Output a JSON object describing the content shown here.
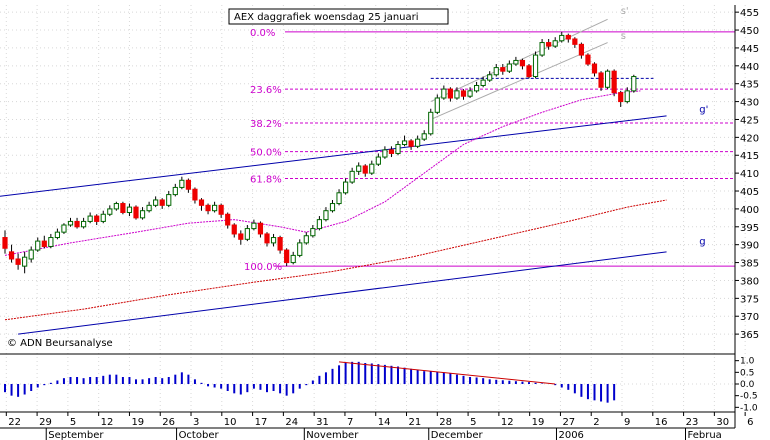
{
  "chart_data": {
    "type": "candlestick",
    "title": "AEX daggrafiek woensdag 25 januari",
    "copyright": "© ADN Beursanalyse",
    "price_axis": {
      "side": "right",
      "range": [
        360,
        457
      ],
      "ticks": [
        365,
        370,
        375,
        380,
        385,
        390,
        395,
        400,
        405,
        410,
        415,
        420,
        425,
        430,
        435,
        440,
        445,
        450,
        455
      ]
    },
    "indicator_axis": {
      "side": "right",
      "range": [
        -1.2,
        1.2
      ],
      "ticks": [
        "1.0",
        "0.5",
        "0.0",
        "-0.5",
        "-1.0"
      ]
    },
    "x_tick_labels": [
      "22",
      "29",
      "5",
      "12",
      "19",
      "26",
      "3",
      "10",
      "17",
      "24",
      "31",
      "7",
      "14",
      "21",
      "28",
      "5",
      "12",
      "19",
      "27",
      "2",
      "9",
      "16",
      "23",
      "30",
      "6"
    ],
    "month_labels": [
      "September",
      "October",
      "November",
      "December",
      "2006",
      "Februa"
    ],
    "fibonacci": [
      {
        "label": "0.0%",
        "value": 449.5
      },
      {
        "label": "23.6%",
        "value": 433.5
      },
      {
        "label": "38.2%",
        "value": 424.0
      },
      {
        "label": "50.0%",
        "value": 416.0
      },
      {
        "label": "61.8%",
        "value": 408.5
      },
      {
        "label": "100.0%",
        "value": 384.0
      }
    ],
    "trendline_labels": [
      "s'",
      "s",
      "g'",
      "g"
    ],
    "candles": [
      {
        "o": 392.0,
        "c": 389.0,
        "h": 394.0,
        "l": 387.5
      },
      {
        "o": 388.0,
        "c": 386.0,
        "h": 390.0,
        "l": 385.0
      },
      {
        "o": 386.0,
        "c": 384.5,
        "h": 387.5,
        "l": 383.0
      },
      {
        "o": 384.0,
        "c": 386.5,
        "h": 388.0,
        "l": 382.0
      },
      {
        "o": 386.0,
        "c": 388.5,
        "h": 389.5,
        "l": 385.0
      },
      {
        "o": 388.5,
        "c": 391.0,
        "h": 392.0,
        "l": 388.0
      },
      {
        "o": 391.0,
        "c": 389.5,
        "h": 392.5,
        "l": 389.0
      },
      {
        "o": 389.5,
        "c": 392.0,
        "h": 393.0,
        "l": 389.0
      },
      {
        "o": 392.0,
        "c": 393.5,
        "h": 394.5,
        "l": 391.5
      },
      {
        "o": 393.5,
        "c": 395.5,
        "h": 396.0,
        "l": 393.0
      },
      {
        "o": 395.5,
        "c": 396.5,
        "h": 397.5,
        "l": 395.0
      },
      {
        "o": 396.5,
        "c": 395.0,
        "h": 397.5,
        "l": 394.5
      },
      {
        "o": 395.0,
        "c": 396.5,
        "h": 397.5,
        "l": 394.5
      },
      {
        "o": 396.5,
        "c": 398.0,
        "h": 399.0,
        "l": 396.0
      },
      {
        "o": 398.0,
        "c": 396.5,
        "h": 398.5,
        "l": 395.5
      },
      {
        "o": 396.5,
        "c": 398.5,
        "h": 399.5,
        "l": 396.0
      },
      {
        "o": 398.5,
        "c": 400.0,
        "h": 401.0,
        "l": 398.0
      },
      {
        "o": 400.0,
        "c": 401.5,
        "h": 402.0,
        "l": 399.5
      },
      {
        "o": 401.5,
        "c": 399.0,
        "h": 402.0,
        "l": 398.5
      },
      {
        "o": 399.0,
        "c": 400.5,
        "h": 401.5,
        "l": 398.0
      },
      {
        "o": 400.5,
        "c": 397.5,
        "h": 401.0,
        "l": 397.0
      },
      {
        "o": 397.5,
        "c": 399.5,
        "h": 400.5,
        "l": 397.0
      },
      {
        "o": 399.5,
        "c": 401.0,
        "h": 402.0,
        "l": 399.0
      },
      {
        "o": 401.0,
        "c": 402.5,
        "h": 403.5,
        "l": 400.5
      },
      {
        "o": 402.5,
        "c": 401.0,
        "h": 403.0,
        "l": 400.0
      },
      {
        "o": 401.0,
        "c": 404.0,
        "h": 405.0,
        "l": 400.5
      },
      {
        "o": 404.0,
        "c": 406.0,
        "h": 407.0,
        "l": 403.5
      },
      {
        "o": 406.0,
        "c": 408.0,
        "h": 409.0,
        "l": 405.5
      },
      {
        "o": 408.0,
        "c": 405.5,
        "h": 408.5,
        "l": 404.5
      },
      {
        "o": 405.5,
        "c": 402.5,
        "h": 406.0,
        "l": 401.5
      },
      {
        "o": 402.5,
        "c": 401.0,
        "h": 403.0,
        "l": 399.5
      },
      {
        "o": 401.0,
        "c": 399.5,
        "h": 401.5,
        "l": 398.5
      },
      {
        "o": 399.5,
        "c": 401.0,
        "h": 402.0,
        "l": 399.0
      },
      {
        "o": 401.0,
        "c": 398.5,
        "h": 401.5,
        "l": 397.5
      },
      {
        "o": 398.5,
        "c": 395.5,
        "h": 399.0,
        "l": 394.5
      },
      {
        "o": 395.5,
        "c": 393.0,
        "h": 396.0,
        "l": 392.0
      },
      {
        "o": 393.0,
        "c": 391.5,
        "h": 394.0,
        "l": 390.0
      },
      {
        "o": 391.5,
        "c": 394.5,
        "h": 395.5,
        "l": 391.0
      },
      {
        "o": 394.5,
        "c": 396.0,
        "h": 397.0,
        "l": 394.0
      },
      {
        "o": 396.0,
        "c": 393.0,
        "h": 396.5,
        "l": 392.0
      },
      {
        "o": 393.0,
        "c": 390.5,
        "h": 393.5,
        "l": 389.5
      },
      {
        "o": 390.5,
        "c": 392.0,
        "h": 393.0,
        "l": 389.5
      },
      {
        "o": 392.0,
        "c": 388.5,
        "h": 392.5,
        "l": 387.5
      },
      {
        "o": 388.5,
        "c": 385.0,
        "h": 389.0,
        "l": 384.0
      },
      {
        "o": 385.0,
        "c": 387.0,
        "h": 388.0,
        "l": 384.5
      },
      {
        "o": 387.0,
        "c": 390.5,
        "h": 391.5,
        "l": 386.5
      },
      {
        "o": 390.5,
        "c": 392.5,
        "h": 393.5,
        "l": 390.0
      },
      {
        "o": 392.5,
        "c": 394.5,
        "h": 395.5,
        "l": 392.0
      },
      {
        "o": 394.5,
        "c": 397.0,
        "h": 398.0,
        "l": 394.0
      },
      {
        "o": 397.0,
        "c": 399.5,
        "h": 400.5,
        "l": 396.5
      },
      {
        "o": 399.5,
        "c": 401.5,
        "h": 402.5,
        "l": 399.0
      },
      {
        "o": 401.5,
        "c": 404.5,
        "h": 405.5,
        "l": 401.0
      },
      {
        "o": 404.5,
        "c": 407.5,
        "h": 408.5,
        "l": 404.0
      },
      {
        "o": 407.5,
        "c": 410.5,
        "h": 411.5,
        "l": 407.0
      },
      {
        "o": 410.5,
        "c": 412.0,
        "h": 413.0,
        "l": 409.5
      },
      {
        "o": 412.0,
        "c": 410.0,
        "h": 412.5,
        "l": 409.0
      },
      {
        "o": 410.0,
        "c": 412.5,
        "h": 413.5,
        "l": 409.5
      },
      {
        "o": 412.5,
        "c": 414.5,
        "h": 415.5,
        "l": 412.0
      },
      {
        "o": 414.5,
        "c": 416.5,
        "h": 417.5,
        "l": 414.0
      },
      {
        "o": 416.5,
        "c": 415.5,
        "h": 417.5,
        "l": 414.5
      },
      {
        "o": 415.5,
        "c": 418.0,
        "h": 419.0,
        "l": 415.0
      },
      {
        "o": 418.0,
        "c": 419.0,
        "h": 420.5,
        "l": 417.5
      },
      {
        "o": 419.0,
        "c": 417.5,
        "h": 419.5,
        "l": 416.5
      },
      {
        "o": 417.5,
        "c": 419.5,
        "h": 420.5,
        "l": 417.0
      },
      {
        "o": 419.5,
        "c": 421.0,
        "h": 422.0,
        "l": 419.0
      },
      {
        "o": 421.0,
        "c": 427.0,
        "h": 428.0,
        "l": 420.5
      },
      {
        "o": 427.0,
        "c": 431.0,
        "h": 432.0,
        "l": 426.5
      },
      {
        "o": 431.0,
        "c": 433.5,
        "h": 434.5,
        "l": 430.5
      },
      {
        "o": 433.5,
        "c": 431.0,
        "h": 434.0,
        "l": 430.0
      },
      {
        "o": 431.0,
        "c": 433.0,
        "h": 434.0,
        "l": 430.5
      },
      {
        "o": 433.0,
        "c": 431.5,
        "h": 433.5,
        "l": 430.5
      },
      {
        "o": 431.5,
        "c": 433.0,
        "h": 434.0,
        "l": 431.0
      },
      {
        "o": 433.0,
        "c": 434.5,
        "h": 435.5,
        "l": 432.5
      },
      {
        "o": 434.5,
        "c": 436.0,
        "h": 437.0,
        "l": 434.0
      },
      {
        "o": 436.0,
        "c": 437.5,
        "h": 438.5,
        "l": 435.5
      },
      {
        "o": 437.5,
        "c": 439.5,
        "h": 440.5,
        "l": 437.0
      },
      {
        "o": 439.5,
        "c": 438.5,
        "h": 440.5,
        "l": 437.5
      },
      {
        "o": 438.5,
        "c": 440.5,
        "h": 441.5,
        "l": 438.0
      },
      {
        "o": 440.5,
        "c": 441.5,
        "h": 442.5,
        "l": 440.0
      },
      {
        "o": 441.5,
        "c": 440.0,
        "h": 442.0,
        "l": 439.0
      },
      {
        "o": 440.0,
        "c": 437.0,
        "h": 440.5,
        "l": 436.5
      },
      {
        "o": 437.0,
        "c": 443.0,
        "h": 444.0,
        "l": 436.5
      },
      {
        "o": 443.0,
        "c": 446.5,
        "h": 447.5,
        "l": 442.5
      },
      {
        "o": 446.5,
        "c": 445.5,
        "h": 447.5,
        "l": 444.5
      },
      {
        "o": 445.5,
        "c": 447.0,
        "h": 448.0,
        "l": 445.0
      },
      {
        "o": 447.0,
        "c": 448.5,
        "h": 449.5,
        "l": 446.5
      },
      {
        "o": 448.5,
        "c": 447.5,
        "h": 449.0,
        "l": 446.5
      },
      {
        "o": 447.5,
        "c": 446.0,
        "h": 448.0,
        "l": 445.0
      },
      {
        "o": 446.0,
        "c": 443.0,
        "h": 446.5,
        "l": 442.0
      },
      {
        "o": 443.0,
        "c": 440.5,
        "h": 443.5,
        "l": 440.0
      },
      {
        "o": 440.5,
        "c": 438.0,
        "h": 441.0,
        "l": 437.0
      },
      {
        "o": 438.0,
        "c": 434.0,
        "h": 438.5,
        "l": 433.0
      },
      {
        "o": 434.0,
        "c": 438.5,
        "h": 439.0,
        "l": 433.5
      },
      {
        "o": 438.5,
        "c": 432.5,
        "h": 439.0,
        "l": 431.5
      },
      {
        "o": 432.5,
        "c": 430.0,
        "h": 433.0,
        "l": 428.5
      },
      {
        "o": 430.0,
        "c": 433.0,
        "h": 434.0,
        "l": 429.5
      },
      {
        "o": 433.0,
        "c": 437.0,
        "h": 437.5,
        "l": 432.5
      }
    ],
    "ma_short": [
      {
        "i": 0,
        "v": 387.0
      },
      {
        "i": 10,
        "v": 390.5
      },
      {
        "i": 20,
        "v": 393.5
      },
      {
        "i": 28,
        "v": 396.0
      },
      {
        "i": 35,
        "v": 397.0
      },
      {
        "i": 42,
        "v": 395.0
      },
      {
        "i": 46,
        "v": 393.5
      },
      {
        "i": 52,
        "v": 396.5
      },
      {
        "i": 58,
        "v": 402.0
      },
      {
        "i": 64,
        "v": 410.0
      },
      {
        "i": 70,
        "v": 418.0
      },
      {
        "i": 76,
        "v": 423.0
      },
      {
        "i": 82,
        "v": 427.0
      },
      {
        "i": 88,
        "v": 430.5
      },
      {
        "i": 94,
        "v": 432.5
      },
      {
        "i": 97,
        "v": 433.0
      }
    ],
    "ma_long": [
      {
        "i": 0,
        "v": 369.0
      },
      {
        "i": 12,
        "v": 372.0
      },
      {
        "i": 25,
        "v": 376.0
      },
      {
        "i": 38,
        "v": 379.5
      },
      {
        "i": 50,
        "v": 382.5
      },
      {
        "i": 62,
        "v": 386.5
      },
      {
        "i": 74,
        "v": 391.5
      },
      {
        "i": 86,
        "v": 396.5
      },
      {
        "i": 95,
        "v": 400.5
      },
      {
        "i": 101,
        "v": 402.5
      }
    ],
    "trendlines": [
      {
        "name": "g'",
        "color": "#0000aa",
        "points": [
          {
            "i": -1,
            "v": 403.5
          },
          {
            "i": 101,
            "v": 426.0
          }
        ]
      },
      {
        "name": "g",
        "color": "#0000aa",
        "points": [
          {
            "i": 2,
            "v": 365.0
          },
          {
            "i": 101,
            "v": 388.0
          }
        ]
      },
      {
        "name": "s'",
        "color": "#aaaaaa",
        "points": [
          {
            "i": 65,
            "v": 430.0
          },
          {
            "i": 92,
            "v": 453.0
          }
        ]
      },
      {
        "name": "s",
        "color": "#aaaaaa",
        "points": [
          {
            "i": 65,
            "v": 425.0
          },
          {
            "i": 92,
            "v": 446.5
          }
        ]
      }
    ],
    "resistance": {
      "value": 436.5,
      "from": 65,
      "to": 99
    },
    "indicator": [
      -0.35,
      -0.5,
      -0.55,
      -0.45,
      -0.3,
      -0.15,
      -0.05,
      0.05,
      0.15,
      0.25,
      0.3,
      0.3,
      0.25,
      0.3,
      0.3,
      0.35,
      0.4,
      0.4,
      0.3,
      0.3,
      0.2,
      0.2,
      0.25,
      0.3,
      0.25,
      0.3,
      0.4,
      0.5,
      0.4,
      0.2,
      0.05,
      -0.1,
      -0.15,
      -0.2,
      -0.3,
      -0.4,
      -0.45,
      -0.35,
      -0.2,
      -0.25,
      -0.35,
      -0.3,
      -0.4,
      -0.5,
      -0.4,
      -0.2,
      -0.05,
      0.15,
      0.35,
      0.5,
      0.65,
      0.8,
      0.9,
      0.95,
      0.95,
      0.9,
      0.88,
      0.85,
      0.82,
      0.78,
      0.75,
      0.7,
      0.65,
      0.6,
      0.55,
      0.55,
      0.52,
      0.5,
      0.45,
      0.4,
      0.35,
      0.3,
      0.28,
      0.25,
      0.2,
      0.18,
      0.16,
      0.14,
      0.12,
      0.1,
      0.08,
      0.05,
      0.02,
      0.0,
      -0.05,
      -0.15,
      -0.25,
      -0.4,
      -0.55,
      -0.65,
      -0.7,
      -0.75,
      -0.8,
      -0.7
    ],
    "indicator_trendline": {
      "color": "#cc0000",
      "points": [
        {
          "i": 51,
          "v": 0.95
        },
        {
          "i": 84,
          "v": 0.0
        }
      ]
    }
  }
}
